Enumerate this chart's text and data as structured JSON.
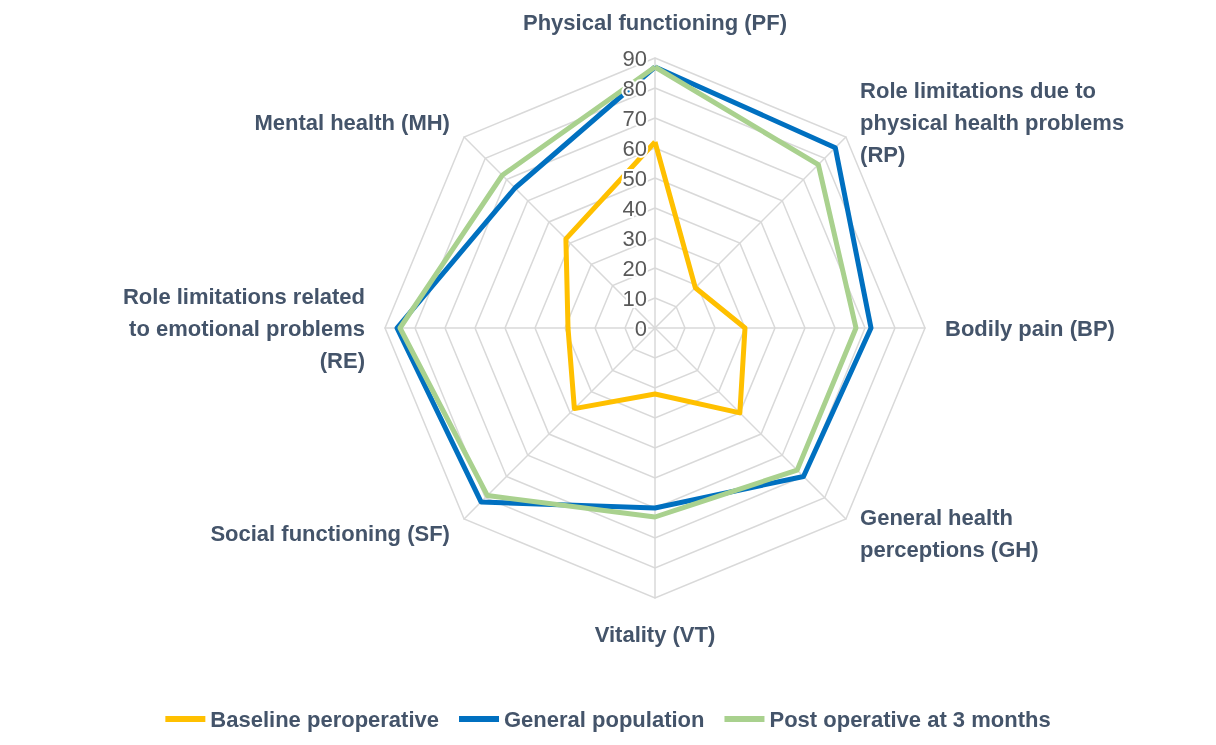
{
  "chart_data": {
    "type": "radar",
    "categories": [
      "Physical functioning (PF)",
      "Role limitations due to physical health problems (RP)",
      "Bodily pain (BP)",
      "General health perceptions (GH)",
      "Vitality (VT)",
      "Social functioning (SF)",
      "Role limitations related to emotional problems (RE)",
      "Mental health (MH)"
    ],
    "series": [
      {
        "name": "Baseline peroperative",
        "color": "#ffc000",
        "values": [
          62,
          19,
          30,
          40,
          22,
          38,
          29,
          42
        ]
      },
      {
        "name": "General population",
        "color": "#0070c0",
        "values": [
          87,
          85,
          72,
          70,
          60,
          82,
          86,
          66
        ]
      },
      {
        "name": "Post operative at 3 months",
        "color": "#a9d18e",
        "values": [
          87,
          77,
          67,
          67,
          63,
          79,
          85,
          72
        ]
      }
    ],
    "ylim": [
      0,
      90
    ],
    "yticks": [
      0,
      10,
      20,
      30,
      40,
      50,
      60,
      70,
      80,
      90
    ],
    "grid": true,
    "legend": "bottom",
    "marker": "none",
    "line_style": "solid"
  }
}
